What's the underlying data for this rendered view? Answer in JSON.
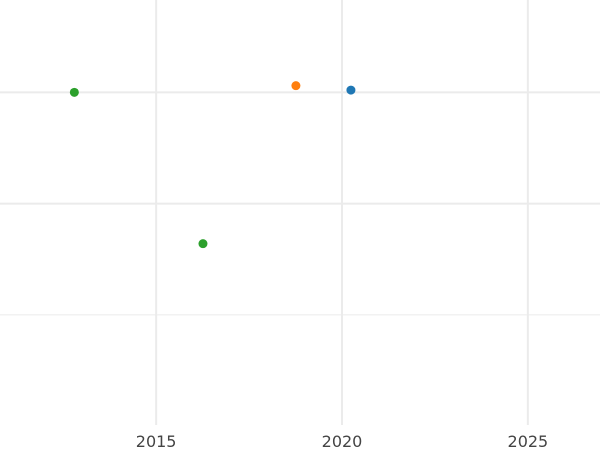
{
  "chart_data": {
    "type": "scatter",
    "title": "",
    "xlabel": "",
    "ylabel": "",
    "xlim": [
      2010.8,
      2026.94
    ],
    "ylim": [
      -0.99,
      2.83
    ],
    "x_ticks": [
      "2015",
      "2020",
      "2025"
    ],
    "x_tick_values": [
      2015,
      2020,
      2025
    ],
    "y_gridlines": [
      0,
      1,
      2
    ],
    "y_tick_labels_shown": false,
    "grid": true,
    "legend": "none",
    "series": [
      {
        "color": "#1f77b4",
        "points": [
          {
            "x": 2020.24,
            "y": 2.02
          }
        ]
      },
      {
        "color": "#ff7f0e",
        "points": [
          {
            "x": 2018.76,
            "y": 2.06
          }
        ]
      },
      {
        "color": "#2ca02c",
        "points": [
          {
            "x": 2012.8,
            "y": 2.0
          },
          {
            "x": 2016.26,
            "y": 0.64
          }
        ]
      }
    ]
  }
}
